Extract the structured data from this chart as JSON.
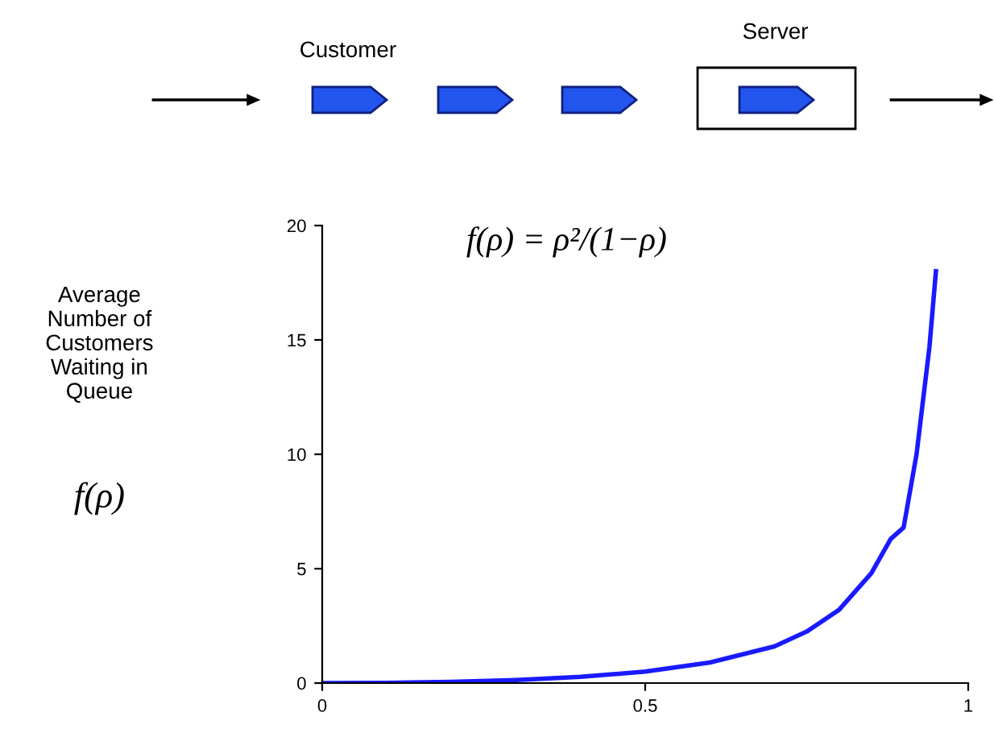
{
  "chart_data": {
    "type": "line",
    "annotations": [
      "Customer",
      "Server",
      "f(ρ) = ρ²/(1−ρ)",
      "f(ρ)",
      "Average\nNumber of\nCustomers\nWaiting in\nQueue"
    ],
    "x": [
      0,
      0.1,
      0.2,
      0.3,
      0.4,
      0.5,
      0.6,
      0.7,
      0.75,
      0.8,
      0.85,
      0.88,
      0.9,
      0.92,
      0.94,
      0.95
    ],
    "series": [
      {
        "color": "#1a1aff",
        "values": [
          0,
          0.01,
          0.05,
          0.13,
          0.27,
          0.5,
          0.9,
          1.6,
          2.25,
          3.2,
          4.8,
          6.3,
          6.8,
          10,
          14.7,
          18
        ]
      }
    ],
    "xlim": [
      0,
      1
    ],
    "ylim": [
      0,
      20
    ],
    "xticks": [
      0,
      0.5,
      1
    ],
    "yticks": [
      0,
      5,
      10,
      15,
      20
    ],
    "grid": false,
    "legend": false,
    "marker": "none",
    "line_style": "solid"
  }
}
